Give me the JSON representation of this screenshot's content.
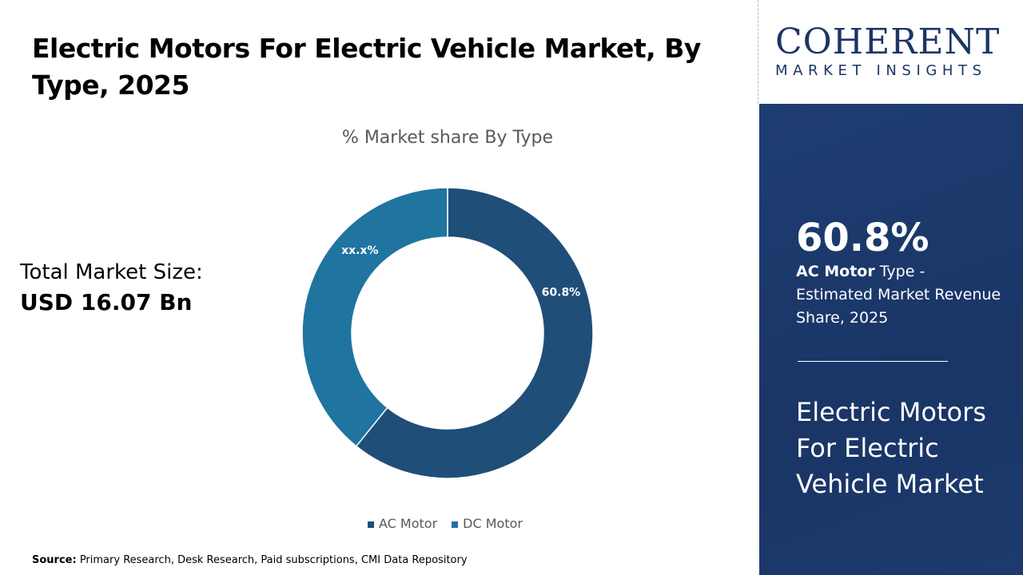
{
  "title": "Electric Motors For Electric Vehicle Market, By Type, 2025",
  "logo": {
    "main": "COHERENT",
    "sub": "MARKET INSIGHTS"
  },
  "total": {
    "label": "Total Market Size:",
    "value": "USD 16.07 Bn"
  },
  "panel": {
    "big": "60.8%",
    "bold": "AC Motor",
    "rest": " Type - Estimated Market Revenue Share, 2025",
    "name": "Electric Motors For Electric Vehicle Market"
  },
  "source": {
    "label": "Source:",
    "text": " Primary Research, Desk Research, Paid subscriptions, CMI Data Repository"
  },
  "chart_data": {
    "type": "pie",
    "donut": true,
    "title": "% Market share By Type",
    "categories": [
      "AC Motor",
      "DC Motor"
    ],
    "values": [
      60.8,
      39.2
    ],
    "data_labels": [
      "60.8%",
      "xx.x%"
    ],
    "colors": [
      "#1f4e79",
      "#2074a0"
    ],
    "legend": "bottom"
  }
}
